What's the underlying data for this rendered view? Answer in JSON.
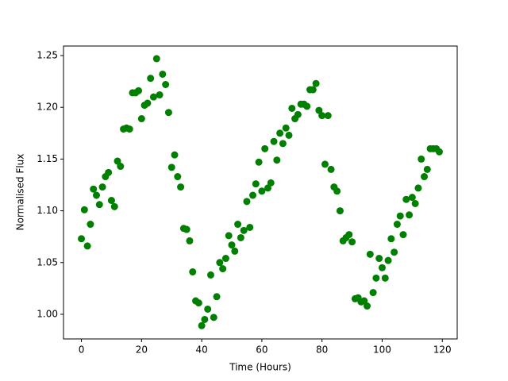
{
  "chart_data": {
    "type": "scatter",
    "xlabel": "Time (Hours)",
    "ylabel": "Normalised Flux",
    "color": "#008000",
    "x": [
      0,
      1,
      2,
      3,
      4,
      5,
      6,
      7,
      8,
      9,
      10,
      11,
      12,
      13,
      14,
      15,
      16,
      17,
      18,
      19,
      20,
      21,
      22,
      23,
      24,
      25,
      26,
      27,
      28,
      29,
      30,
      31,
      32,
      33,
      34,
      35,
      36,
      37,
      38,
      39,
      40,
      41,
      42,
      43,
      44,
      45,
      46,
      47,
      48,
      49,
      50,
      51,
      52,
      53,
      54,
      55,
      56,
      57,
      58,
      59,
      60,
      61,
      62,
      63,
      64,
      65,
      66,
      67,
      68,
      69,
      70,
      71,
      72,
      73,
      74,
      75,
      76,
      77,
      78,
      79,
      80,
      81,
      82,
      83,
      84,
      85,
      86,
      87,
      88,
      89,
      90,
      91,
      92,
      93,
      94,
      95,
      96,
      97,
      98,
      99,
      100,
      101,
      102,
      103,
      104,
      105,
      106,
      107,
      108,
      109,
      110,
      111,
      112,
      113,
      114,
      115,
      116,
      117,
      118,
      119
    ],
    "values": [
      1.073,
      1.101,
      1.066,
      1.087,
      1.121,
      1.115,
      1.106,
      1.123,
      1.133,
      1.137,
      1.11,
      1.104,
      1.148,
      1.143,
      1.179,
      1.18,
      1.179,
      1.214,
      1.214,
      1.216,
      1.189,
      1.202,
      1.204,
      1.228,
      1.21,
      1.247,
      1.212,
      1.232,
      1.222,
      1.195,
      1.142,
      1.154,
      1.133,
      1.123,
      1.083,
      1.082,
      1.071,
      1.041,
      1.013,
      1.011,
      0.989,
      0.995,
      1.005,
      1.038,
      0.997,
      1.017,
      1.05,
      1.044,
      1.054,
      1.076,
      1.067,
      1.061,
      1.087,
      1.074,
      1.081,
      1.109,
      1.084,
      1.115,
      1.126,
      1.147,
      1.119,
      1.16,
      1.122,
      1.127,
      1.167,
      1.149,
      1.175,
      1.165,
      1.18,
      1.173,
      1.199,
      1.189,
      1.193,
      1.203,
      1.203,
      1.201,
      1.217,
      1.217,
      1.223,
      1.197,
      1.192,
      1.145,
      1.192,
      1.14,
      1.123,
      1.119,
      1.1,
      1.071,
      1.074,
      1.077,
      1.07,
      1.015,
      1.016,
      1.012,
      1.013,
      1.008,
      1.058,
      1.021,
      1.035,
      1.054,
      1.045,
      1.035,
      1.052,
      1.073,
      1.06,
      1.087,
      1.095,
      1.077,
      1.111,
      1.096,
      1.113,
      1.107,
      1.122,
      1.15,
      1.133,
      1.14,
      1.16,
      1.16,
      1.16,
      1.157
    ],
    "xlim": [
      -5.95,
      124.95
    ],
    "xticks": [
      0,
      20,
      40,
      60,
      80,
      100,
      120
    ],
    "ylim": [
      0.9762,
      1.2592
    ],
    "yticks": [
      {
        "value": 1.0,
        "label": "1.00"
      },
      1.05,
      {
        "value": 1.1,
        "label": "1.10"
      },
      1.15,
      {
        "value": 1.2,
        "label": "1.20"
      },
      1.25
    ]
  }
}
